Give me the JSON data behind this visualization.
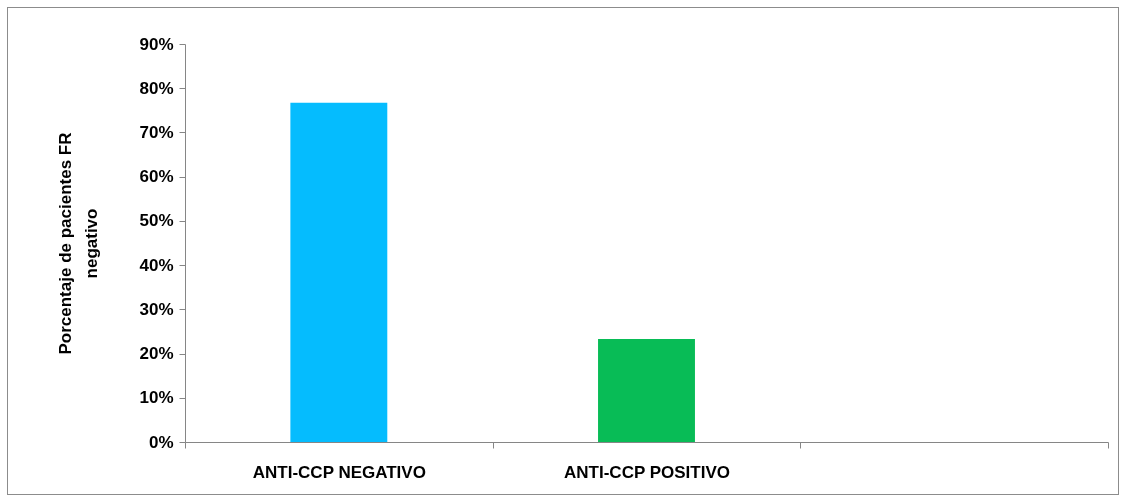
{
  "chart_data": {
    "type": "bar",
    "categories": [
      "ANTI-CCP NEGATIVO",
      "ANTI-CCP POSITIVO",
      null
    ],
    "values": [
      76.7,
      23.3,
      null
    ],
    "colors": [
      "#05bcfe",
      "#08bc56",
      null
    ],
    "ylabel": "Porcentaje de pacientes FR\nnegativo",
    "ylim": [
      0,
      90
    ],
    "yticks": [
      {
        "value": 0,
        "label": "0%"
      },
      {
        "value": 10,
        "label": "10%"
      },
      {
        "value": 20,
        "label": "20%"
      },
      {
        "value": 30,
        "label": "30%"
      },
      {
        "value": 40,
        "label": "40%"
      },
      {
        "value": 50,
        "label": "50%"
      },
      {
        "value": 60,
        "label": "60%"
      },
      {
        "value": 70,
        "label": "70%"
      },
      {
        "value": 80,
        "label": "80%"
      },
      {
        "value": 90,
        "label": "90%"
      }
    ]
  }
}
